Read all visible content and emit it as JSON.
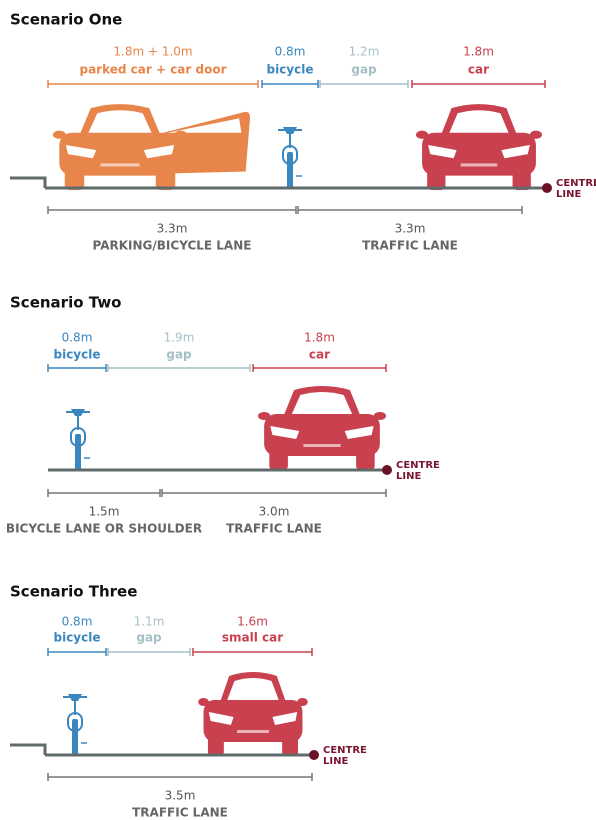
{
  "scenarios": [
    {
      "title": "Scenario One",
      "segments": [
        {
          "size": "1.8m + 1.0m",
          "label": "parked car + car door",
          "color": "#e8854a"
        },
        {
          "size": "0.8m",
          "label": "bicycle",
          "color": "#3a87c0"
        },
        {
          "size": "1.2m",
          "label": "gap",
          "color": "#a5c1c6"
        },
        {
          "size": "1.8m",
          "label": "car",
          "color": "#c9414f"
        }
      ],
      "lanes": [
        {
          "size": "3.3m",
          "label": "PARKING/BICYCLE LANE"
        },
        {
          "size": "3.3m",
          "label": "TRAFFIC LANE"
        }
      ],
      "centre_line": [
        "CENTRE",
        "LINE"
      ]
    },
    {
      "title": "Scenario Two",
      "segments": [
        {
          "size": "0.8m",
          "label": "bicycle",
          "color": "#3a87c0"
        },
        {
          "size": "1.9m",
          "label": "gap",
          "color": "#a5c1c6"
        },
        {
          "size": "1.8m",
          "label": "car",
          "color": "#c9414f"
        }
      ],
      "lanes": [
        {
          "size": "1.5m",
          "label": "BICYCLE LANE OR SHOULDER"
        },
        {
          "size": "3.0m",
          "label": "TRAFFIC LANE"
        }
      ],
      "centre_line": [
        "CENTRE",
        "LINE"
      ]
    },
    {
      "title": "Scenario Three",
      "segments": [
        {
          "size": "0.8m",
          "label": "bicycle",
          "color": "#3a87c0"
        },
        {
          "size": "1.1m",
          "label": "gap",
          "color": "#a5c1c6"
        },
        {
          "size": "1.6m",
          "label": "small car",
          "color": "#c9414f"
        }
      ],
      "lanes": [
        {
          "size": "3.5m",
          "label": "TRAFFIC LANE"
        }
      ],
      "centre_line": [
        "CENTRE",
        "LINE"
      ]
    }
  ]
}
